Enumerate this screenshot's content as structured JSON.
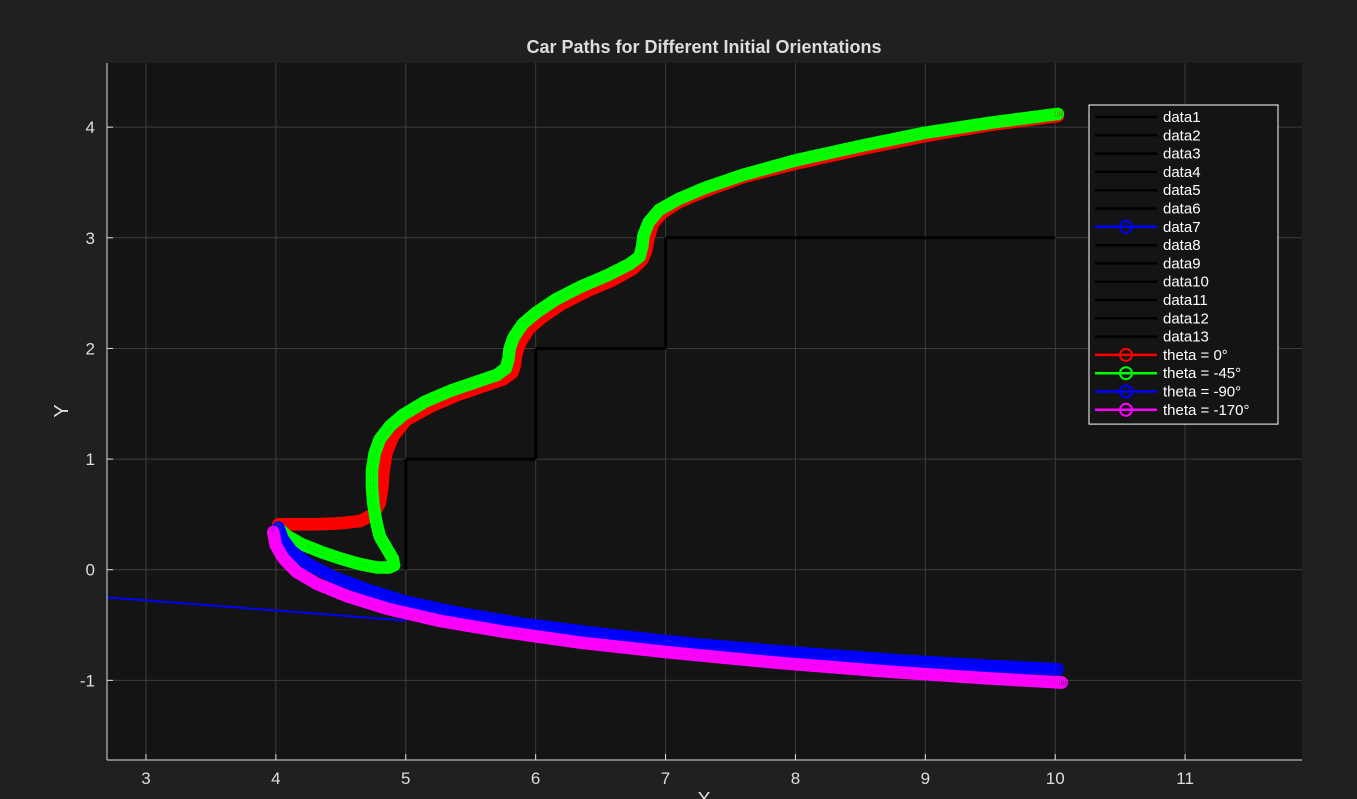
{
  "chart_data": {
    "type": "line",
    "title": "Car Paths for Different Initial Orientations",
    "xlabel": "X",
    "ylabel": "Y",
    "xlim": [
      2.7,
      11.9
    ],
    "ylim": [
      -1.72,
      4.58
    ],
    "xticks": [
      3,
      4,
      5,
      6,
      7,
      8,
      9,
      10,
      11
    ],
    "yticks": [
      -1,
      0,
      1,
      2,
      3,
      4
    ],
    "grid": true,
    "legend_position": "top-right",
    "colors": {
      "figure_bg": "#202020",
      "axes_bg": "#141414",
      "grid": "#3c3c3c",
      "axis_text": "#dddddd",
      "legend_bg": "#141414",
      "legend_border": "#ffffff"
    },
    "walls": [
      {
        "name": "data1",
        "color": "#000000",
        "x": [
          5,
          5
        ],
        "y": [
          0,
          1
        ]
      },
      {
        "name": "data2",
        "color": "#000000",
        "x": [
          5,
          6
        ],
        "y": [
          1,
          1
        ]
      },
      {
        "name": "data3",
        "color": "#000000",
        "x": [
          6,
          6
        ],
        "y": [
          1,
          2
        ]
      },
      {
        "name": "data4",
        "color": "#000000",
        "x": [
          6,
          7
        ],
        "y": [
          2,
          2
        ]
      },
      {
        "name": "data5",
        "color": "#000000",
        "x": [
          7,
          7
        ],
        "y": [
          2,
          3
        ]
      },
      {
        "name": "data6",
        "color": "#000000",
        "x": [
          7,
          10
        ],
        "y": [
          3,
          3
        ]
      },
      {
        "name": "data7",
        "color": "#0000ff",
        "x": [
          2.7,
          5.0
        ],
        "y": [
          -0.25,
          -0.46
        ],
        "marker": true
      },
      {
        "name": "data8",
        "color": "#000000",
        "x": [
          5,
          5
        ],
        "y": [
          1,
          1
        ]
      },
      {
        "name": "data9",
        "color": "#000000",
        "x": [
          6,
          6
        ],
        "y": [
          2,
          2
        ]
      },
      {
        "name": "data10",
        "color": "#000000",
        "x": [
          7,
          7
        ],
        "y": [
          3,
          3
        ]
      },
      {
        "name": "data11",
        "color": "#000000",
        "x": [
          5,
          5
        ],
        "y": [
          0,
          0
        ]
      },
      {
        "name": "data12",
        "color": "#000000",
        "x": [
          6,
          6
        ],
        "y": [
          1,
          1
        ]
      },
      {
        "name": "data13",
        "color": "#000000",
        "x": [
          10,
          10
        ],
        "y": [
          3,
          3
        ]
      }
    ],
    "series": [
      {
        "name": "theta = 0°",
        "color": "#ff0000",
        "x": [
          10.02,
          9.5,
          9.0,
          8.5,
          8.0,
          7.6,
          7.3,
          7.1,
          6.97,
          6.9,
          6.87,
          6.85,
          6.82,
          6.75,
          6.6,
          6.4,
          6.2,
          6.05,
          5.95,
          5.88,
          5.85,
          5.84,
          5.82,
          5.75,
          5.6,
          5.4,
          5.2,
          5.0,
          4.9,
          4.85,
          4.83,
          4.82,
          4.8,
          4.75,
          4.65,
          4.5,
          4.3,
          4.1,
          4.02
        ],
        "y": [
          4.1,
          4.02,
          3.92,
          3.8,
          3.67,
          3.55,
          3.42,
          3.32,
          3.22,
          3.12,
          3.0,
          2.88,
          2.8,
          2.72,
          2.62,
          2.52,
          2.4,
          2.28,
          2.18,
          2.05,
          1.95,
          1.85,
          1.78,
          1.72,
          1.66,
          1.58,
          1.48,
          1.35,
          1.2,
          1.05,
          0.9,
          0.75,
          0.6,
          0.5,
          0.44,
          0.42,
          0.41,
          0.41,
          0.41
        ]
      },
      {
        "name": "theta = -45°",
        "color": "#00ff00",
        "x": [
          10.02,
          9.5,
          9.0,
          8.5,
          8.0,
          7.6,
          7.3,
          7.1,
          6.95,
          6.87,
          6.83,
          6.82,
          6.8,
          6.72,
          6.55,
          6.35,
          6.15,
          6.0,
          5.9,
          5.83,
          5.8,
          5.79,
          5.77,
          5.7,
          5.55,
          5.35,
          5.15,
          4.98,
          4.88,
          4.8,
          4.76,
          4.74,
          4.74,
          4.75,
          4.77,
          4.8,
          4.85,
          4.9,
          4.91,
          4.87,
          4.78,
          4.65,
          4.5,
          4.35,
          4.2,
          4.08,
          4.02
        ],
        "y": [
          4.12,
          4.04,
          3.95,
          3.83,
          3.7,
          3.57,
          3.45,
          3.35,
          3.25,
          3.14,
          3.02,
          2.92,
          2.83,
          2.76,
          2.66,
          2.56,
          2.44,
          2.32,
          2.22,
          2.1,
          2.0,
          1.9,
          1.82,
          1.76,
          1.7,
          1.62,
          1.52,
          1.4,
          1.3,
          1.18,
          1.05,
          0.9,
          0.75,
          0.6,
          0.45,
          0.3,
          0.2,
          0.1,
          0.04,
          0.02,
          0.02,
          0.05,
          0.1,
          0.16,
          0.23,
          0.31,
          0.38
        ]
      },
      {
        "name": "theta = -90°",
        "color": "#0000ff",
        "x": [
          4.02,
          4.05,
          4.12,
          4.25,
          4.45,
          4.7,
          5.0,
          5.4,
          5.9,
          6.5,
          7.2,
          8.0,
          8.8,
          9.5,
          10.02
        ],
        "y": [
          0.38,
          0.28,
          0.17,
          0.05,
          -0.07,
          -0.18,
          -0.29,
          -0.39,
          -0.49,
          -0.58,
          -0.67,
          -0.75,
          -0.82,
          -0.87,
          -0.9
        ]
      },
      {
        "name": "theta = -170°",
        "color": "#ff00ff",
        "x": [
          3.98,
          4.0,
          4.06,
          4.16,
          4.32,
          4.55,
          4.85,
          5.25,
          5.75,
          6.35,
          7.05,
          7.85,
          8.7,
          9.45,
          10.05
        ],
        "y": [
          0.34,
          0.22,
          0.1,
          -0.02,
          -0.13,
          -0.24,
          -0.35,
          -0.46,
          -0.56,
          -0.66,
          -0.75,
          -0.84,
          -0.92,
          -0.98,
          -1.02
        ]
      }
    ]
  }
}
